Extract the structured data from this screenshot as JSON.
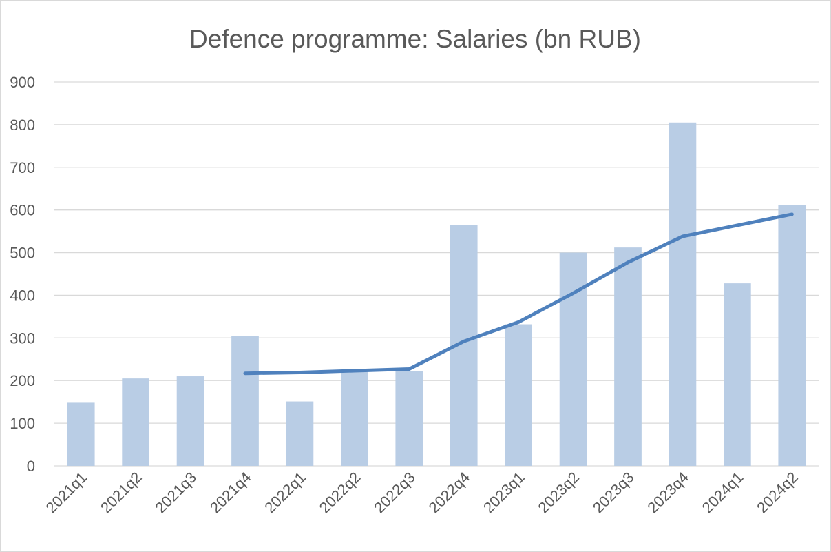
{
  "chart_data": {
    "type": "bar",
    "title": "Defence programme: Salaries (bn RUB)",
    "xlabel": "",
    "ylabel": "",
    "categories": [
      "2021q1",
      "2021q2",
      "2021q3",
      "2021q4",
      "2022q1",
      "2022q2",
      "2022q3",
      "2022q4",
      "2023q1",
      "2023q2",
      "2023q3",
      "2023q4",
      "2024q1",
      "2024q2"
    ],
    "ylim": [
      0,
      900
    ],
    "yticks": [
      0,
      100,
      200,
      300,
      400,
      500,
      600,
      700,
      800,
      900
    ],
    "grid": true,
    "legend": "none",
    "series": [
      {
        "type": "bar",
        "color": "#b9cde5",
        "values": [
          148,
          205,
          210,
          305,
          151,
          222,
          222,
          564,
          332,
          500,
          512,
          805,
          428,
          611
        ]
      },
      {
        "type": "line",
        "color": "#4f81bd",
        "values": [
          null,
          null,
          null,
          217,
          219,
          223,
          227,
          292,
          337,
          405,
          477,
          538,
          564,
          590
        ]
      }
    ]
  }
}
